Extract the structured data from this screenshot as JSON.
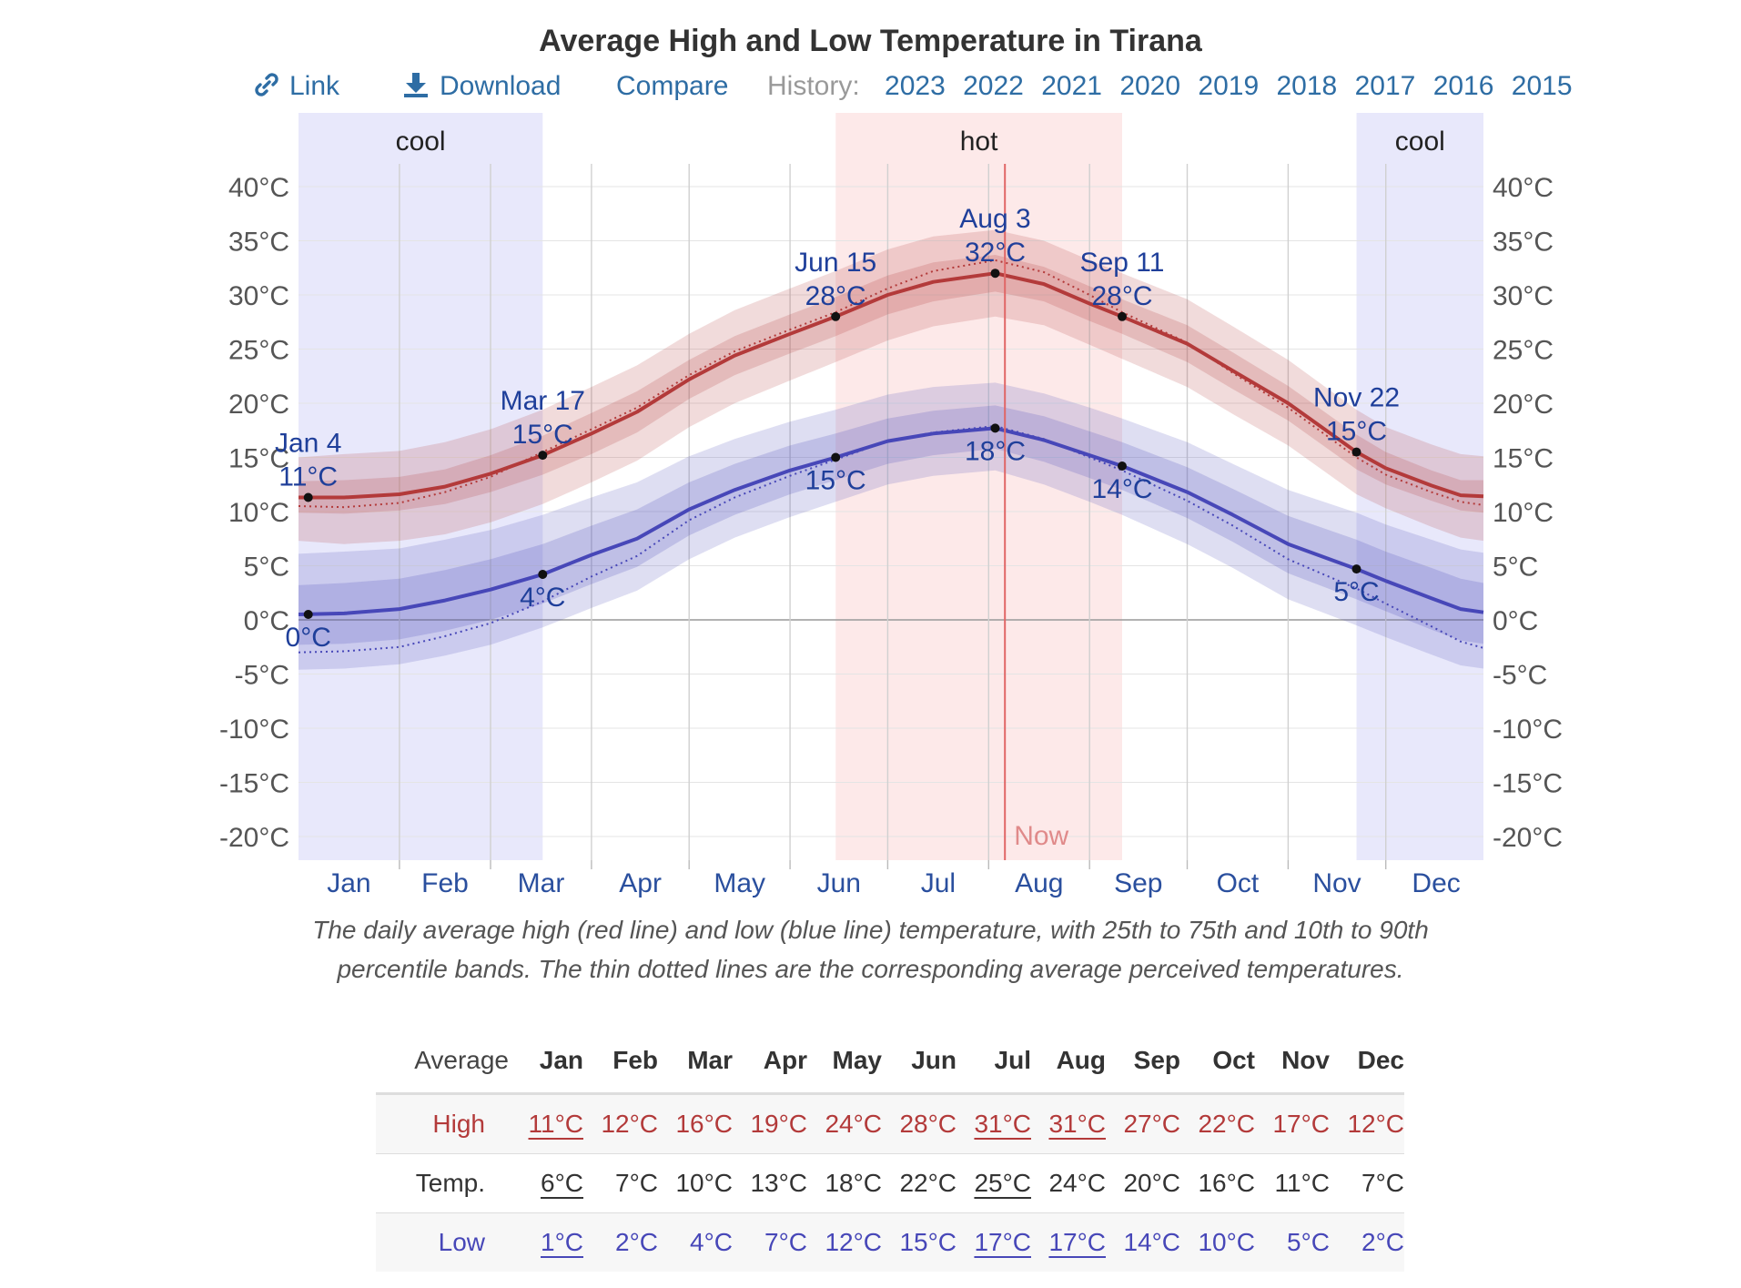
{
  "title": "Average High and Low Temperature in Tirana",
  "toolbar": {
    "link_label": "Link",
    "download_label": "Download",
    "compare_label": "Compare",
    "history_label": "History:",
    "history_years": [
      "2023",
      "2022",
      "2021",
      "2020",
      "2019",
      "2018",
      "2017",
      "2016",
      "2015"
    ]
  },
  "colors": {
    "high": "#b33a3a",
    "low": "#4747b8",
    "cool_band": "#e8e8fb",
    "hot_band": "#fde9e9",
    "now_line": "#e06666",
    "link": "#2e6da4"
  },
  "chart_data": {
    "type": "line",
    "title": "Average High and Low Temperature in Tirana",
    "x_unit": "day of year",
    "ylim": [
      -22,
      40
    ],
    "y_ticks": [
      "40°C",
      "35°C",
      "30°C",
      "25°C",
      "20°C",
      "15°C",
      "10°C",
      "5°C",
      "0°C",
      "-5°C",
      "-10°C",
      "-15°C",
      "-20°C"
    ],
    "month_labels": [
      "Jan",
      "Feb",
      "Mar",
      "Apr",
      "May",
      "Jun",
      "Jul",
      "Aug",
      "Sep",
      "Oct",
      "Nov",
      "Dec"
    ],
    "grid": true,
    "seasons": [
      {
        "label": "cool",
        "start_day": 1,
        "end_day": 76
      },
      {
        "label": "hot",
        "start_day": 166,
        "end_day": 254
      },
      {
        "label": "cool",
        "start_day": 326,
        "end_day": 365
      }
    ],
    "now_day": 218,
    "now_label": "Now",
    "series": [
      {
        "name": "High",
        "x": [
          1,
          15,
          32,
          46,
          60,
          76,
          91,
          105,
          121,
          135,
          152,
          166,
          182,
          196,
          215,
          230,
          244,
          254,
          274,
          288,
          305,
          326,
          335,
          349,
          358,
          365
        ],
        "y": [
          11.3,
          11.3,
          11.6,
          12.3,
          13.5,
          15.2,
          17.2,
          19.2,
          22.2,
          24.4,
          26.4,
          28.0,
          30.0,
          31.2,
          32.0,
          31.0,
          29.2,
          28.0,
          25.5,
          23.0,
          20.0,
          15.5,
          14.0,
          12.4,
          11.5,
          11.4
        ],
        "p25": [
          9.9,
          9.8,
          10.1,
          10.7,
          11.8,
          13.4,
          15.3,
          17.3,
          20.4,
          22.6,
          24.6,
          26.2,
          28.2,
          29.4,
          30.3,
          29.4,
          27.6,
          26.4,
          23.8,
          21.3,
          18.4,
          13.9,
          12.5,
          11.0,
          10.1,
          9.9
        ],
        "p75": [
          12.8,
          12.9,
          13.2,
          13.9,
          15.2,
          17.0,
          19.1,
          21.1,
          24.0,
          26.2,
          28.2,
          29.8,
          31.8,
          33.0,
          33.7,
          32.6,
          30.8,
          29.6,
          27.2,
          24.7,
          21.6,
          17.1,
          15.5,
          13.8,
          12.9,
          12.9
        ],
        "p10": [
          7.3,
          7.0,
          7.3,
          7.9,
          9.0,
          10.7,
          12.7,
          14.7,
          17.8,
          20.0,
          22.1,
          23.8,
          25.8,
          27.1,
          28.0,
          27.2,
          25.4,
          24.1,
          21.5,
          19.0,
          16.1,
          11.6,
          10.3,
          8.6,
          7.6,
          7.3
        ],
        "p90": [
          15.0,
          15.3,
          15.6,
          16.4,
          17.6,
          19.4,
          21.5,
          23.5,
          26.4,
          28.6,
          30.6,
          32.2,
          34.2,
          35.4,
          36.0,
          35.0,
          33.2,
          32.0,
          29.6,
          27.1,
          24.0,
          19.4,
          17.8,
          16.2,
          15.3,
          15.1
        ],
        "perceived": [
          10.5,
          10.4,
          10.8,
          11.8,
          13.2,
          15.5,
          17.6,
          19.6,
          22.6,
          24.8,
          26.8,
          28.4,
          30.6,
          32.2,
          33.2,
          32.1,
          30.0,
          28.4,
          25.6,
          22.8,
          19.6,
          15.0,
          13.4,
          11.8,
          10.9,
          10.6
        ]
      },
      {
        "name": "Low",
        "x": [
          1,
          15,
          32,
          46,
          60,
          76,
          91,
          105,
          121,
          135,
          152,
          166,
          182,
          196,
          215,
          230,
          244,
          254,
          274,
          288,
          305,
          326,
          335,
          349,
          358,
          365
        ],
        "y": [
          0.5,
          0.6,
          1.0,
          1.8,
          2.8,
          4.2,
          6.0,
          7.5,
          10.2,
          12.0,
          13.8,
          15.0,
          16.5,
          17.2,
          17.7,
          16.6,
          15.2,
          14.2,
          11.8,
          9.7,
          7.0,
          4.7,
          3.6,
          2.0,
          1.0,
          0.7
        ],
        "p25": [
          -2.3,
          -2.2,
          -1.8,
          -1.0,
          0.0,
          1.5,
          3.3,
          4.9,
          7.8,
          9.7,
          11.6,
          12.9,
          14.4,
          15.2,
          15.8,
          14.6,
          13.1,
          12.0,
          9.4,
          7.2,
          4.3,
          1.9,
          0.8,
          -0.9,
          -1.9,
          -2.2
        ],
        "p75": [
          3.2,
          3.4,
          3.8,
          4.6,
          5.6,
          7.0,
          8.7,
          10.2,
          12.7,
          14.4,
          16.1,
          17.2,
          18.6,
          19.3,
          19.8,
          18.8,
          17.4,
          16.4,
          14.1,
          12.1,
          9.6,
          7.4,
          6.3,
          4.8,
          3.8,
          3.4
        ],
        "p10": [
          -4.6,
          -4.5,
          -4.1,
          -3.3,
          -2.3,
          -0.7,
          1.1,
          2.7,
          5.6,
          7.6,
          9.5,
          10.9,
          12.5,
          13.3,
          13.8,
          12.5,
          10.9,
          9.7,
          7.0,
          4.8,
          1.9,
          -0.5,
          -1.6,
          -3.2,
          -4.2,
          -4.5
        ],
        "p90": [
          6.1,
          6.3,
          6.6,
          7.4,
          8.3,
          9.7,
          11.3,
          12.7,
          15.1,
          16.7,
          18.3,
          19.4,
          20.8,
          21.5,
          21.9,
          20.9,
          19.6,
          18.6,
          16.4,
          14.4,
          12.0,
          9.9,
          8.8,
          7.4,
          6.5,
          6.2
        ],
        "perceived": [
          -3.0,
          -2.9,
          -2.5,
          -1.5,
          -0.3,
          1.7,
          4.0,
          5.9,
          9.2,
          11.3,
          13.3,
          14.8,
          16.5,
          17.3,
          17.9,
          16.7,
          15.0,
          13.8,
          11.0,
          8.7,
          5.6,
          2.9,
          1.5,
          -0.6,
          -2.0,
          -2.6
        ]
      }
    ],
    "annotations": [
      {
        "day": 4,
        "series": "High",
        "date_label": "Jan 4",
        "value_label": "11°C",
        "y": 11.3,
        "position": "above"
      },
      {
        "day": 4,
        "series": "Low",
        "date_label": "",
        "value_label": "0°C",
        "y": 0.5,
        "position": "below"
      },
      {
        "day": 76,
        "series": "High",
        "date_label": "Mar 17",
        "value_label": "15°C",
        "y": 15.2,
        "position": "above"
      },
      {
        "day": 76,
        "series": "Low",
        "date_label": "",
        "value_label": "4°C",
        "y": 4.2,
        "position": "below"
      },
      {
        "day": 166,
        "series": "High",
        "date_label": "Jun 15",
        "value_label": "28°C",
        "y": 28.0,
        "position": "above"
      },
      {
        "day": 166,
        "series": "Low",
        "date_label": "",
        "value_label": "15°C",
        "y": 15.0,
        "position": "below"
      },
      {
        "day": 215,
        "series": "High",
        "date_label": "Aug 3",
        "value_label": "32°C",
        "y": 32.0,
        "position": "above"
      },
      {
        "day": 215,
        "series": "Low",
        "date_label": "",
        "value_label": "18°C",
        "y": 17.7,
        "position": "below"
      },
      {
        "day": 254,
        "series": "High",
        "date_label": "Sep 11",
        "value_label": "28°C",
        "y": 28.0,
        "position": "above"
      },
      {
        "day": 254,
        "series": "Low",
        "date_label": "",
        "value_label": "14°C",
        "y": 14.2,
        "position": "below"
      },
      {
        "day": 326,
        "series": "High",
        "date_label": "Nov 22",
        "value_label": "15°C",
        "y": 15.5,
        "position": "above"
      },
      {
        "day": 326,
        "series": "Low",
        "date_label": "",
        "value_label": "5°C",
        "y": 4.7,
        "position": "below"
      }
    ]
  },
  "caption": "The daily average high (red line) and low (blue line) temperature, with 25th to 75th and 10th to 90th percentile bands. The thin dotted lines are the corresponding average perceived temperatures.",
  "table": {
    "header_label": "Average",
    "months": [
      "Jan",
      "Feb",
      "Mar",
      "Apr",
      "May",
      "Jun",
      "Jul",
      "Aug",
      "Sep",
      "Oct",
      "Nov",
      "Dec"
    ],
    "rows": [
      {
        "label": "High",
        "cls": "high",
        "shaded": true,
        "values": [
          "11°C",
          "12°C",
          "16°C",
          "19°C",
          "24°C",
          "28°C",
          "31°C",
          "31°C",
          "27°C",
          "22°C",
          "17°C",
          "12°C"
        ],
        "underlined": [
          0,
          6,
          7
        ]
      },
      {
        "label": "Temp.",
        "cls": "temp",
        "shaded": false,
        "values": [
          "6°C",
          "7°C",
          "10°C",
          "13°C",
          "18°C",
          "22°C",
          "25°C",
          "24°C",
          "20°C",
          "16°C",
          "11°C",
          "7°C"
        ],
        "underlined": [
          0,
          6
        ]
      },
      {
        "label": "Low",
        "cls": "low",
        "shaded": true,
        "values": [
          "1°C",
          "2°C",
          "4°C",
          "7°C",
          "12°C",
          "15°C",
          "17°C",
          "17°C",
          "14°C",
          "10°C",
          "5°C",
          "2°C"
        ],
        "underlined": [
          0,
          6,
          7
        ]
      }
    ]
  }
}
